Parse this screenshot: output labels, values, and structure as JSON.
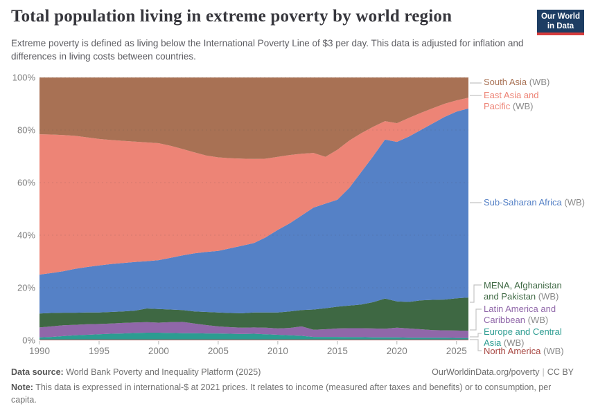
{
  "header": {
    "title": "Total population living in extreme poverty by world region",
    "subtitle": "Extreme poverty is defined as living below the International Poverty Line of $3 per day. This data is adjusted for inflation and differences in living costs between countries.",
    "logo_line1": "Our World",
    "logo_line2": "in Data",
    "logo_bg": "#1d3d63",
    "logo_accent": "#d73c3c"
  },
  "chart_data": {
    "type": "area",
    "stacking": "percent",
    "title": "Total population living in extreme poverty by world region",
    "xlabel": "",
    "ylabel": "",
    "unit": "%",
    "ylim": [
      0,
      100
    ],
    "x_range": [
      1990,
      2026
    ],
    "grid": "dashed-horizontal",
    "legend_position": "right",
    "x": [
      1990,
      1991,
      1992,
      1993,
      1994,
      1995,
      1996,
      1997,
      1998,
      1999,
      2000,
      2001,
      2002,
      2003,
      2004,
      2005,
      2006,
      2007,
      2008,
      2009,
      2010,
      2011,
      2012,
      2013,
      2014,
      2015,
      2016,
      2017,
      2018,
      2019,
      2020,
      2021,
      2022,
      2023,
      2024,
      2025,
      2026
    ],
    "xticks": [
      1990,
      1995,
      2000,
      2005,
      2010,
      2015,
      2020,
      2025
    ],
    "yticks": [
      0,
      20,
      40,
      60,
      80,
      100
    ],
    "series": [
      {
        "name": "North America (WB)",
        "color": "#a84742",
        "values": [
          0.3,
          0.3,
          0.3,
          0.3,
          0.3,
          0.3,
          0.3,
          0.3,
          0.3,
          0.3,
          0.3,
          0.3,
          0.3,
          0.3,
          0.3,
          0.3,
          0.3,
          0.3,
          0.3,
          0.3,
          0.3,
          0.3,
          0.3,
          0.3,
          0.3,
          0.3,
          0.3,
          0.3,
          0.3,
          0.3,
          0.3,
          0.3,
          0.3,
          0.3,
          0.3,
          0.3,
          0.3
        ]
      },
      {
        "name": "Europe and Central Asia (WB)",
        "color": "#2c9c91",
        "values": [
          0.8,
          1.0,
          1.3,
          1.6,
          1.8,
          2.0,
          2.2,
          2.3,
          2.5,
          2.6,
          2.6,
          2.5,
          2.4,
          2.4,
          2.3,
          2.3,
          2.2,
          2.1,
          2.2,
          2.0,
          1.8,
          1.6,
          1.4,
          1.0,
          1.0,
          1.0,
          0.9,
          0.9,
          0.8,
          0.8,
          0.8,
          0.7,
          0.7,
          0.7,
          0.7,
          0.6,
          0.6
        ]
      },
      {
        "name": "Latin America and Caribbean (WB)",
        "color": "#9067a9",
        "values": [
          3.8,
          4.0,
          4.1,
          4.0,
          4.0,
          3.9,
          3.9,
          4.0,
          4.0,
          4.0,
          3.8,
          4.1,
          4.3,
          3.7,
          3.2,
          2.7,
          2.5,
          2.4,
          2.4,
          2.5,
          2.4,
          2.8,
          3.6,
          2.7,
          2.9,
          3.2,
          3.4,
          3.4,
          3.4,
          3.3,
          3.7,
          3.5,
          3.2,
          2.9,
          2.8,
          2.8,
          2.7
        ]
      },
      {
        "name": "MENA, Afghanistan and Pakistan (WB)",
        "color": "#3e6843",
        "values": [
          5.3,
          5.1,
          4.8,
          4.6,
          4.5,
          4.4,
          4.4,
          4.4,
          4.5,
          5.2,
          5.2,
          4.8,
          4.5,
          4.6,
          5.0,
          5.3,
          5.4,
          5.5,
          5.7,
          5.8,
          6.1,
          6.3,
          6.2,
          7.7,
          8.0,
          8.3,
          8.6,
          9.0,
          10.0,
          11.5,
          10.0,
          10.1,
          11.0,
          11.5,
          11.7,
          12.3,
          12.7
        ]
      },
      {
        "name": "Sub-Saharan Africa (WB)",
        "color": "#5581c6",
        "values": [
          14.8,
          15.2,
          15.8,
          16.7,
          17.3,
          17.9,
          18.2,
          18.4,
          18.5,
          18.0,
          18.6,
          19.7,
          20.8,
          22.1,
          22.8,
          23.4,
          24.6,
          25.7,
          26.4,
          28.6,
          31.4,
          33.5,
          36.0,
          38.8,
          39.8,
          40.7,
          44.8,
          50.4,
          55.5,
          60.5,
          60.7,
          62.9,
          64.8,
          67.1,
          69.5,
          71.0,
          71.9
        ]
      },
      {
        "name": "East Asia and Pacific (WB)",
        "color": "#ed8476",
        "values": [
          53.4,
          52.7,
          51.8,
          50.6,
          49.3,
          48.1,
          47.2,
          46.5,
          45.8,
          45.2,
          44.5,
          42.6,
          40.5,
          38.4,
          36.7,
          35.6,
          34.3,
          33.1,
          32.0,
          29.9,
          27.8,
          26.0,
          23.5,
          20.8,
          17.8,
          19.0,
          18.0,
          14.8,
          11.2,
          7.0,
          7.1,
          7.1,
          6.5,
          5.8,
          5.0,
          4.3,
          4.1
        ]
      },
      {
        "name": "South Asia (WB)",
        "color": "#a87154",
        "values": [
          21.6,
          21.7,
          21.9,
          22.2,
          22.8,
          23.4,
          23.8,
          24.1,
          24.4,
          24.7,
          25.0,
          26.0,
          27.2,
          28.5,
          29.7,
          30.4,
          30.7,
          30.9,
          31.0,
          30.9,
          30.2,
          29.5,
          29.0,
          28.7,
          30.2,
          27.5,
          24.0,
          21.2,
          18.8,
          16.6,
          17.4,
          15.4,
          13.5,
          11.7,
          10.0,
          8.7,
          7.7
        ]
      }
    ]
  },
  "legend": [
    {
      "label": "South Asia",
      "suffix": "(WB)",
      "color": "#a87154"
    },
    {
      "label": "East Asia and Pacific",
      "suffix": "(WB)",
      "color": "#ed8476"
    },
    {
      "label": "Sub-Saharan Africa",
      "suffix": "(WB)",
      "color": "#5581c6"
    },
    {
      "label": "MENA, Afghanistan and Pakistan",
      "suffix": "(WB)",
      "color": "#3e6843"
    },
    {
      "label": "Latin America and Caribbean",
      "suffix": "(WB)",
      "color": "#9067a9"
    },
    {
      "label": "Europe and Central Asia",
      "suffix": "(WB)",
      "color": "#2c9c91"
    },
    {
      "label": "North America",
      "suffix": "(WB)",
      "color": "#a84742"
    }
  ],
  "axis": {
    "y_suffix": "%"
  },
  "footer": {
    "datasource_label": "Data source:",
    "datasource_value": "World Bank Poverty and Inequality Platform (2025)",
    "link": "OurWorldinData.org/poverty",
    "separator": "|",
    "license": "CC BY",
    "note_label": "Note:",
    "note_text": "This data is expressed in international-$ at 2021 prices. It relates to income (measured after taxes and benefits) or to consumption, per capita."
  }
}
